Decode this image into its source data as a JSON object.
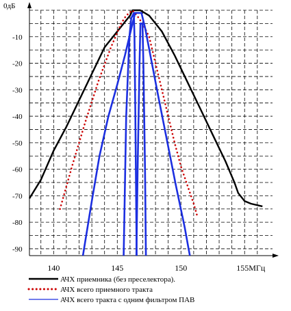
{
  "chart_data": {
    "type": "line",
    "ylabel": "0дБ",
    "xunit_label": "155МГц",
    "x_ticks": [
      {
        "value": 140,
        "label": "140"
      },
      {
        "value": 145,
        "label": "145"
      },
      {
        "value": 150,
        "label": "150"
      },
      {
        "value": 155,
        "label": "155МГц"
      }
    ],
    "y_ticks": [
      {
        "value": 0,
        "label": "0дБ"
      },
      {
        "value": -10,
        "label": "-10"
      },
      {
        "value": -20,
        "label": "-20"
      },
      {
        "value": -30,
        "label": "-30"
      },
      {
        "value": -40,
        "label": "-40"
      },
      {
        "value": -50,
        "label": "-50"
      },
      {
        "value": -60,
        "label": "-60"
      },
      {
        "value": -70,
        "label": "-70"
      },
      {
        "value": -80,
        "label": "-80"
      },
      {
        "value": -90,
        "label": "-90"
      }
    ],
    "xlim": [
      138.1,
      157.3
    ],
    "ylim": [
      -92.6,
      0
    ],
    "grid": true,
    "legend_position": "bottom",
    "series": [
      {
        "name": "АЧХ  приемника  (без преселектора).",
        "color": "#000000",
        "style": "solid",
        "points": [
          [
            138.1,
            -71
          ],
          [
            139.0,
            -64
          ],
          [
            140.0,
            -53
          ],
          [
            141.0,
            -44
          ],
          [
            142.0,
            -34
          ],
          [
            143.0,
            -24
          ],
          [
            144.0,
            -14
          ],
          [
            145.0,
            -8
          ],
          [
            145.5,
            -5
          ],
          [
            146.0,
            -2
          ],
          [
            146.2,
            0
          ],
          [
            146.8,
            0
          ],
          [
            147.5,
            -2
          ],
          [
            148.5,
            -8
          ],
          [
            149.5,
            -17
          ],
          [
            150.5,
            -27
          ],
          [
            151.5,
            -37
          ],
          [
            152.5,
            -47
          ],
          [
            153.5,
            -57
          ],
          [
            154.2,
            -65
          ],
          [
            154.5,
            -69
          ],
          [
            155.0,
            -72
          ],
          [
            155.5,
            -73
          ],
          [
            156.4,
            -74
          ]
        ]
      },
      {
        "name": "АЧХ  всего приемного тракта",
        "color": "#cc0000",
        "style": "dotted",
        "points": [
          [
            140.5,
            -75
          ],
          [
            141.5,
            -58
          ],
          [
            142.5,
            -42
          ],
          [
            143.5,
            -27
          ],
          [
            144.5,
            -14
          ],
          [
            145.3,
            -5
          ],
          [
            145.7,
            -2
          ],
          [
            146.2,
            0
          ],
          [
            146.7,
            -3
          ],
          [
            147.1,
            -6
          ],
          [
            147.5,
            -10
          ],
          [
            148.0,
            -20
          ],
          [
            148.5,
            -30
          ],
          [
            149.0,
            -40
          ],
          [
            149.5,
            -50
          ],
          [
            150.0,
            -59
          ],
          [
            150.5,
            -66
          ],
          [
            151.0,
            -73
          ],
          [
            151.3,
            -78
          ]
        ]
      },
      {
        "name": "АЧХ всего тракта  с одним фильтром  ПАВ",
        "color": "#1c2fe0",
        "style": "solid",
        "points": [
          [
            142.3,
            -92.6
          ],
          [
            143.0,
            -72
          ],
          [
            143.6,
            -55
          ],
          [
            144.3,
            -40
          ],
          [
            145.0,
            -28
          ],
          [
            145.6,
            -17
          ],
          [
            146.1,
            -7
          ],
          [
            146.4,
            -1
          ],
          [
            146.9,
            -1
          ],
          [
            147.2,
            -7
          ],
          [
            147.6,
            -17
          ],
          [
            148.2,
            -32
          ],
          [
            148.9,
            -49
          ],
          [
            149.6,
            -66
          ],
          [
            150.3,
            -82
          ],
          [
            150.6,
            -90
          ],
          [
            150.7,
            -92.6
          ]
        ]
      },
      {
        "name": "",
        "color": "#1c2fe0",
        "style": "solid",
        "points": [
          [
            145.5,
            -92.6
          ],
          [
            145.7,
            -40
          ],
          [
            145.95,
            -10
          ],
          [
            146.1,
            -3
          ],
          [
            146.3,
            -1
          ],
          [
            146.35,
            -10
          ],
          [
            146.42,
            -40
          ],
          [
            146.52,
            -92.6
          ]
        ]
      },
      {
        "name": "",
        "color": "#1c2fe0",
        "style": "solid",
        "points": [
          [
            146.5,
            -92.6
          ],
          [
            146.6,
            -60
          ],
          [
            146.75,
            -20
          ],
          [
            146.82,
            -5
          ],
          [
            146.98,
            -5
          ],
          [
            147.05,
            -20
          ],
          [
            147.18,
            -60
          ],
          [
            147.25,
            -92.6
          ]
        ]
      }
    ]
  }
}
